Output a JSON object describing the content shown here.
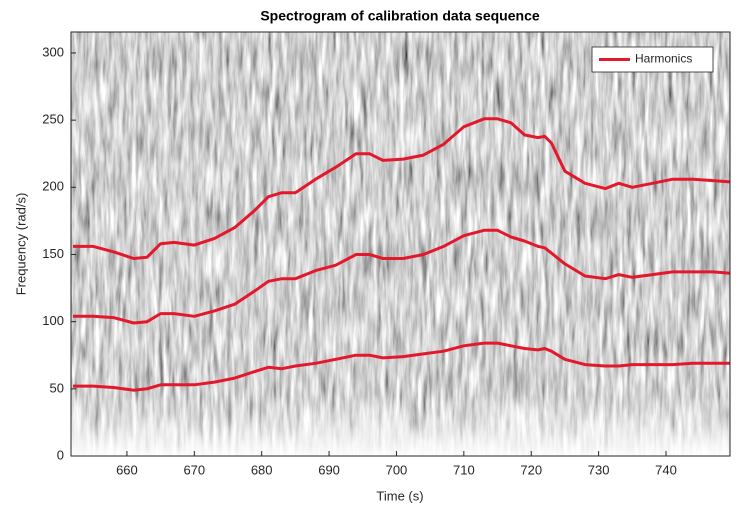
{
  "chart_data": {
    "type": "line",
    "title": "Spectrogram of calibration data sequence",
    "x_label": "Time (s)",
    "y_label": "Frequency (rad/s)",
    "x": [
      652,
      655,
      658,
      661,
      663,
      665,
      667,
      670,
      673,
      676,
      679,
      681,
      683,
      685,
      688,
      691,
      694,
      696,
      698,
      701,
      704,
      707,
      710,
      713,
      715,
      717,
      719,
      721,
      722,
      723,
      725,
      728,
      731,
      733,
      735,
      738,
      741,
      744,
      747,
      749.5
    ],
    "series": [
      {
        "name": "Harmonics",
        "color": "#e3182d",
        "values": [
          52,
          52,
          51,
          49,
          50,
          53,
          53,
          53,
          55,
          58,
          63,
          66,
          65,
          67,
          69,
          72,
          75,
          75,
          73,
          74,
          76,
          78,
          82,
          84,
          84,
          82,
          80,
          79,
          80,
          78,
          72,
          68,
          67,
          67,
          68,
          68,
          68,
          69,
          69,
          69
        ]
      },
      {
        "color": "#e3182d",
        "values": [
          104,
          104,
          103,
          99,
          100,
          106,
          106,
          104,
          108,
          113,
          123,
          130,
          132,
          132,
          138,
          142,
          150,
          150,
          147,
          147,
          150,
          156,
          164,
          168,
          168,
          163,
          160,
          156,
          155,
          151,
          143,
          134,
          132,
          135,
          133,
          135,
          137,
          137,
          137,
          136
        ]
      },
      {
        "color": "#e3182d",
        "values": [
          156,
          156,
          152,
          147,
          148,
          158,
          159,
          157,
          162,
          170,
          183,
          193,
          196,
          196,
          206,
          215,
          225,
          225,
          220,
          221,
          224,
          232,
          245,
          251,
          251,
          248,
          239,
          237,
          238,
          233,
          212,
          203,
          199,
          203,
          200,
          203,
          206,
          206,
          205,
          204
        ]
      }
    ],
    "xlim": [
      651.7,
      749.5
    ],
    "ylim": [
      0,
      315.6
    ],
    "xticks": [
      660,
      670,
      680,
      690,
      700,
      710,
      720,
      730,
      740
    ],
    "yticks": [
      0,
      50,
      100,
      150,
      200,
      250,
      300
    ],
    "legend": "upper right"
  }
}
